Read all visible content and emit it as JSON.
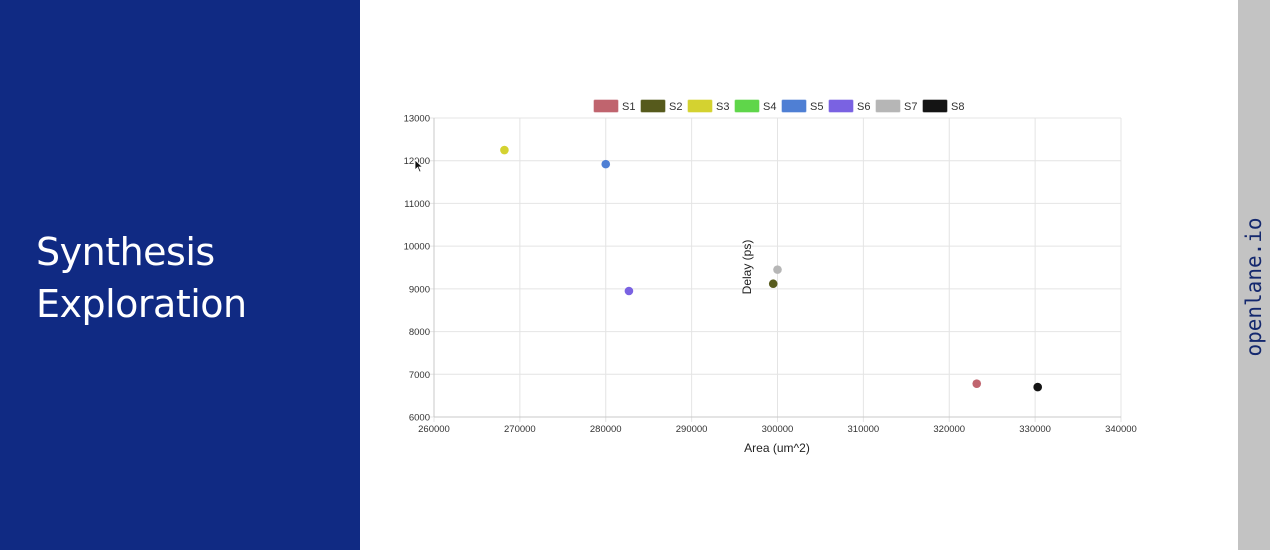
{
  "slide": {
    "title_line1": "Synthesis",
    "title_line2": "Exploration",
    "watermark": "openlane.io",
    "accent_color": "#102a83"
  },
  "chart_data": {
    "type": "scatter",
    "xlabel": "Area (um^2)",
    "ylabel": "Delay (ps)",
    "xlim": [
      260000,
      340000
    ],
    "ylim": [
      6000,
      13000
    ],
    "x_ticks": [
      "260000",
      "270000",
      "280000",
      "290000",
      "300000",
      "310000",
      "320000",
      "330000",
      "340000"
    ],
    "y_ticks": [
      "6000",
      "7000",
      "8000",
      "9000",
      "10000",
      "11000",
      "12000",
      "13000"
    ],
    "grid": true,
    "legend_position": "top",
    "series": [
      {
        "name": "S1",
        "color": "#c0646e",
        "x": 323200,
        "y": 6780
      },
      {
        "name": "S2",
        "color": "#565a1c",
        "x": 299500,
        "y": 9120
      },
      {
        "name": "S3",
        "color": "#d4d230",
        "x": 268200,
        "y": 12250
      },
      {
        "name": "S4",
        "color": "#5fd64a",
        "x": null,
        "y": null
      },
      {
        "name": "S5",
        "color": "#4f7fd4",
        "x": 280000,
        "y": 11920
      },
      {
        "name": "S6",
        "color": "#7a62e2",
        "x": 282700,
        "y": 8950
      },
      {
        "name": "S7",
        "color": "#b6b6b6",
        "x": 300000,
        "y": 9450
      },
      {
        "name": "S8",
        "color": "#141414",
        "x": 330300,
        "y": 6700
      }
    ]
  }
}
